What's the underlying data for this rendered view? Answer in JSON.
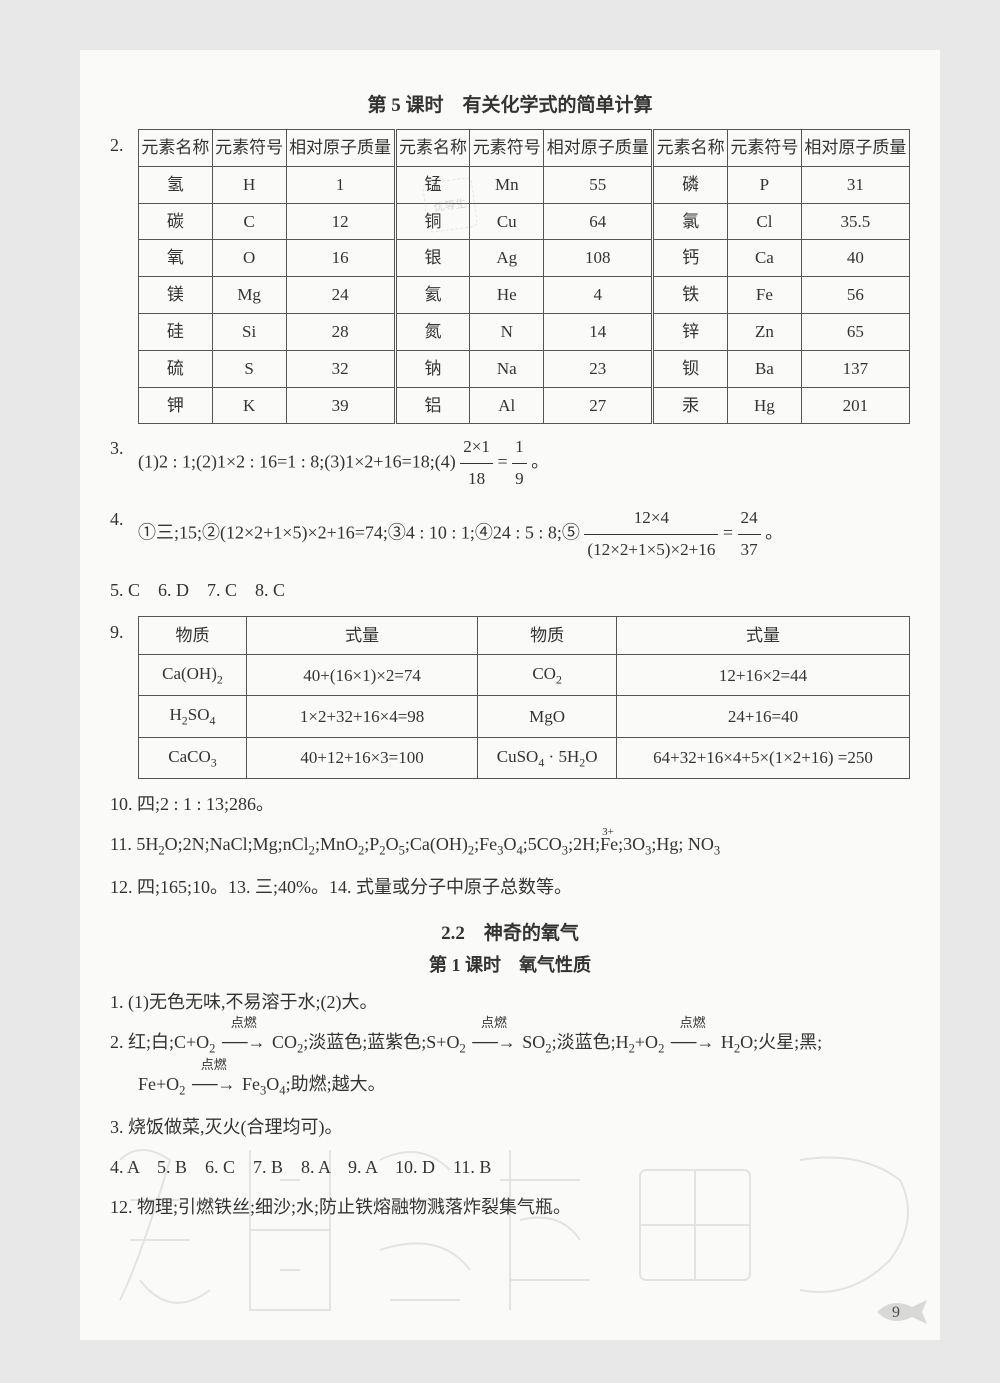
{
  "lesson5_title": "第 5 课时　有关化学式的简单计算",
  "q2_num": "2.",
  "elem_table": {
    "headers": [
      "元素名称",
      "元素符号",
      "相对原子质量",
      "元素名称",
      "元素符号",
      "相对原子质量",
      "元素名称",
      "元素符号",
      "相对原子质量"
    ],
    "rows": [
      [
        "氢",
        "H",
        "1",
        "锰",
        "Mn",
        "55",
        "磷",
        "P",
        "31"
      ],
      [
        "碳",
        "C",
        "12",
        "铜",
        "Cu",
        "64",
        "氯",
        "Cl",
        "35.5"
      ],
      [
        "氧",
        "O",
        "16",
        "银",
        "Ag",
        "108",
        "钙",
        "Ca",
        "40"
      ],
      [
        "镁",
        "Mg",
        "24",
        "氦",
        "He",
        "4",
        "铁",
        "Fe",
        "56"
      ],
      [
        "硅",
        "Si",
        "28",
        "氮",
        "N",
        "14",
        "锌",
        "Zn",
        "65"
      ],
      [
        "硫",
        "S",
        "32",
        "钠",
        "Na",
        "23",
        "钡",
        "Ba",
        "137"
      ],
      [
        "钾",
        "K",
        "39",
        "铝",
        "Al",
        "27",
        "汞",
        "Hg",
        "201"
      ]
    ]
  },
  "q3_num": "3.",
  "q3_text_a": "(1)2 : 1;(2)1×2 : 16=1 : 8;(3)1×2+16=18;(4)",
  "q3_frac_n": "2×1",
  "q3_frac_d": "18",
  "q3_eq": "=",
  "q3_frac2_n": "1",
  "q3_frac2_d": "9",
  "q3_end": "。",
  "q4_num": "4.",
  "q4_text_a": "①三;15;②(12×2+1×5)×2+16=74;③4 : 10 : 1;④24 : 5 : 8;⑤",
  "q4_frac_n": "12×4",
  "q4_frac_d": "(12×2+1×5)×2+16",
  "q4_eq": "=",
  "q4_frac2_n": "24",
  "q4_frac2_d": "37",
  "q4_end": "。",
  "q5_8": "5. C　6. D　7. C　8. C",
  "q9_num": "9.",
  "fw_table": {
    "headers": [
      "物质",
      "式量",
      "物质",
      "式量"
    ],
    "rows": [
      {
        "c1": "Ca(OH)",
        "c1s": "2",
        "c2": "40+(16×1)×2=74",
        "c3": "CO",
        "c3s": "2",
        "c4": "12+16×2=44"
      },
      {
        "c1": "H",
        "c1s": "2",
        "c1b": "SO",
        "c1bs": "4",
        "c2": "1×2+32+16×4=98",
        "c3": "MgO",
        "c3s": "",
        "c4": "24+16=40"
      },
      {
        "c1": "CaCO",
        "c1s": "3",
        "c2": "40+12+16×3=100",
        "c3": "CuSO",
        "c3s": "4",
        "c3b": " · 5H",
        "c3bs": "2",
        "c3c": "O",
        "c4": "64+32+16×4+5×(1×2+16) =250"
      }
    ]
  },
  "q10": "10. 四;2 : 1 : 13;286。",
  "q11_num": "11.",
  "q11_body_a": "5H",
  "q11_body": "O;2N;NaCl;Mg;nCl",
  "q12_14": "12. 四;165;10。13. 三;40%。14. 式量或分子中原子总数等。",
  "section22": "2.2　神奇的氧气",
  "lesson1_title": "第 1 课时　氧气性质",
  "s2_q1": "1. (1)无色无味,不易溶于水;(2)大。",
  "s2_q2_num": "2.",
  "s2_q2_a": "红;白;C+O",
  "arrow1_top": "点燃",
  "s2_q2_b": "CO",
  "s2_q2_c": ";淡蓝色;蓝紫色;S+O",
  "s2_q2_d": "SO",
  "s2_q2_e": ";淡蓝色;H",
  "s2_q2_f": "+O",
  "s2_q2_g": "H",
  "s2_q2_h": "O;火星;黑;",
  "s2_q2_line2a": "Fe+O",
  "s2_q2_line2b": "Fe",
  "s2_q2_line2c": "O",
  "s2_q2_line2d": ";助燃;越大。",
  "s2_q3": "3. 烧饭做菜,灭火(合理均可)。",
  "s2_q4_11": "4. A　5. B　6. C　7. B　8. A　9. A　10. D　11. B",
  "s2_q12": "12. 物理;引燃铁丝;细沙;水;防止铁熔融物溅落炸裂集气瓶。",
  "page_num": "9",
  "stamp": "优等生"
}
